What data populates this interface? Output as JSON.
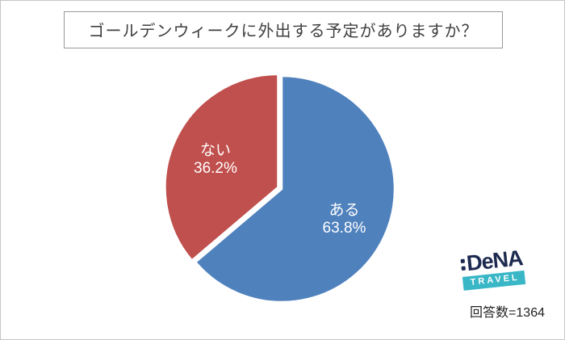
{
  "footer": {
    "respondents": "回答数=1364"
  },
  "logo": {
    "brand": "DeNA",
    "sub": "TRAVEL"
  },
  "colors": {
    "blue": "#4f81bd",
    "red": "#c0504d",
    "frame_border": "#c6c6c6",
    "title_border": "#9a9a9a",
    "logo_navy": "#1d2a50",
    "logo_teal": "#39b7c6"
  },
  "chart_data": {
    "type": "pie",
    "title": "ゴールデンウィークに外出する予定がありますか？",
    "slices": [
      {
        "label": "ある",
        "value": 63.8,
        "color": "#4f81bd",
        "explode": 0
      },
      {
        "label": "ない",
        "value": 36.2,
        "color": "#c0504d",
        "explode": 5
      }
    ],
    "start_angle_deg": 0,
    "direction": "clockwise",
    "value_suffix": "%",
    "label_color": "#ffffff",
    "legend": "none",
    "annotation": "回答数=1364"
  }
}
